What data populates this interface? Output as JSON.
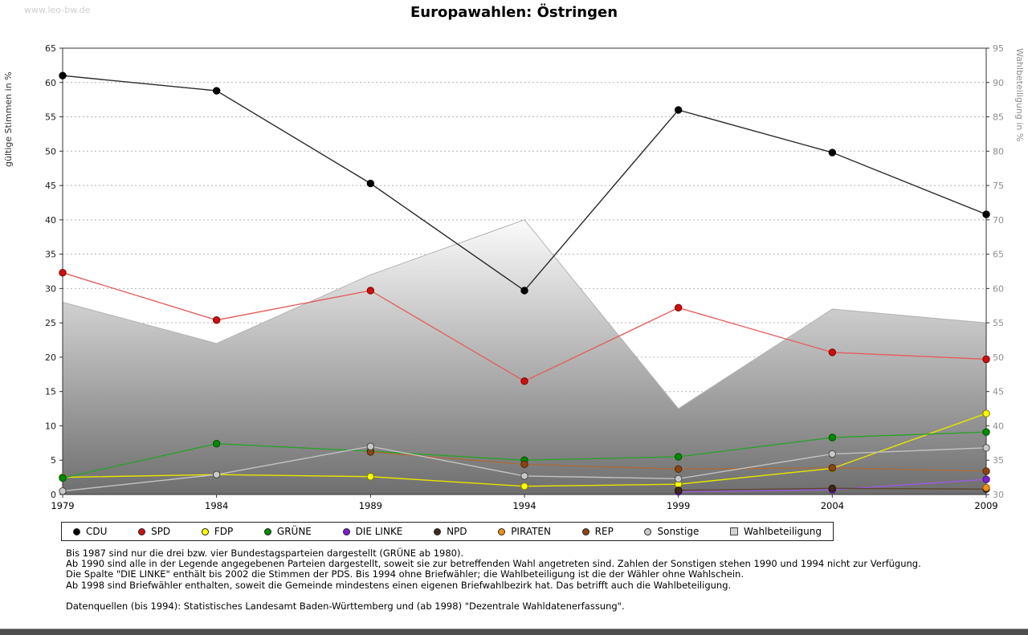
{
  "watermark": "www.leo-bw.de",
  "chart_data": {
    "type": "line",
    "title": "Europawahlen: Östringen",
    "x_categories": [
      "1979",
      "1984",
      "1989",
      "1994",
      "1999",
      "2004",
      "2009"
    ],
    "left_axis": {
      "label": "gültige Stimmen in %",
      "min": 0,
      "max": 65,
      "step": 5
    },
    "right_axis": {
      "label": "Wahlbeteiligung in %",
      "min": 30,
      "max": 95,
      "step": 5
    },
    "grid": true,
    "legend_position": "bottom",
    "series": [
      {
        "id": "cdu",
        "name": "CDU",
        "axis": "left",
        "type": "line",
        "color": "#000000",
        "line_color": "#2a2a2a",
        "edge_color": "#000000",
        "values": [
          61.0,
          58.8,
          45.3,
          29.7,
          56.0,
          49.8,
          40.8
        ]
      },
      {
        "id": "spd",
        "name": "SPD",
        "axis": "left",
        "type": "line",
        "color": "#cc1010",
        "line_color": "#e46060",
        "edge_color": "#7a0000",
        "values": [
          32.3,
          25.4,
          29.7,
          16.5,
          27.2,
          20.7,
          19.7
        ]
      },
      {
        "id": "fdp",
        "name": "FDP",
        "axis": "left",
        "type": "line",
        "color": "#ffff00",
        "line_color": "#e6e600",
        "edge_color": "#7d7d00",
        "values": [
          2.5,
          2.9,
          2.6,
          1.2,
          1.5,
          3.8,
          11.8
        ]
      },
      {
        "id": "gruene",
        "name": "GRÜNE",
        "axis": "left",
        "type": "line",
        "color": "#008a00",
        "line_color": "#2ca02c",
        "edge_color": "#004d00",
        "values": [
          2.4,
          7.4,
          6.3,
          5.0,
          5.5,
          8.3,
          9.1
        ]
      },
      {
        "id": "die-linke",
        "name": "DIE LINKE",
        "axis": "left",
        "type": "line",
        "color": "#7b1fd2",
        "line_color": "#9a5ae0",
        "edge_color": "#4a0f80",
        "values": [
          null,
          null,
          null,
          null,
          0.4,
          0.7,
          2.2
        ]
      },
      {
        "id": "npd",
        "name": "NPD",
        "axis": "left",
        "type": "line",
        "color": "#3b2a1a",
        "line_color": "#5c4630",
        "edge_color": "#201508",
        "values": [
          null,
          null,
          null,
          null,
          0.6,
          0.9,
          0.8
        ]
      },
      {
        "id": "piraten",
        "name": "PIRATEN",
        "axis": "left",
        "type": "line",
        "color": "#ef8f1f",
        "line_color": "#f2a958",
        "edge_color": "#9a5a08",
        "values": [
          null,
          null,
          null,
          null,
          null,
          null,
          1.0
        ]
      },
      {
        "id": "rep",
        "name": "REP",
        "axis": "left",
        "type": "line",
        "color": "#8b4513",
        "line_color": "#a96b3c",
        "edge_color": "#4f2608",
        "values": [
          null,
          null,
          6.2,
          4.4,
          3.7,
          3.9,
          3.4
        ]
      },
      {
        "id": "sonstige",
        "name": "Sonstige",
        "axis": "left",
        "type": "line",
        "color": "#c9c9c9",
        "line_color": "#c2c2c2",
        "edge_color": "#4a4a4a",
        "values": [
          0.5,
          2.9,
          7.0,
          2.7,
          2.3,
          5.9,
          6.8
        ]
      },
      {
        "id": "wahlbeteiligung",
        "name": "Wahlbeteiligung",
        "axis": "right",
        "type": "area",
        "color": "#d2d2d2",
        "edge_color": "#b2b2b2",
        "gradient": [
          "#fbfbfb",
          "#6e6e6e"
        ],
        "values": [
          58,
          52,
          62,
          70,
          42.5,
          57,
          55
        ]
      }
    ]
  },
  "notes": {
    "lines": [
      "Bis 1987 sind nur die drei bzw. vier Bundestagsparteien dargestellt (GRÜNE ab 1980).",
      "Ab 1990 sind alle in der Legende angegebenen Parteien dargestellt, soweit sie zur betreffenden Wahl angetreten sind. Zahlen der Sonstigen stehen 1990 und 1994 nicht zur Verfügung.",
      "Die Spalte \"DIE LINKE\" enthält bis 2002 die Stimmen der PDS. Bis 1994 ohne Briefwähler; die Wahlbeteiligung ist die der Wähler ohne Wahlschein.",
      "Ab 1998 sind Briefwähler enthalten, soweit die Gemeinde mindestens einen eigenen Briefwahlbezirk hat. Das betrifft auch die Wahlbeteiligung."
    ],
    "source": "Datenquellen (bis 1994): Statistisches Landesamt Baden-Württemberg und (ab 1998) \"Dezentrale Wahldatenerfassung\"."
  }
}
